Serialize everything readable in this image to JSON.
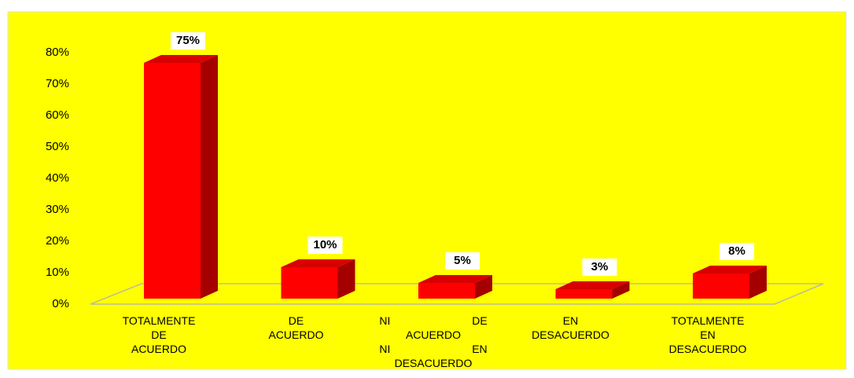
{
  "chart_data": {
    "type": "bar3d",
    "categories": [
      "TOTALMENTE DE ACUERDO",
      "DE ACUERDO",
      "NI DE ACUERDO NI EN DESACUERDO",
      "EN DESACUERDO",
      "TOTALMENTE EN DESACUERDO"
    ],
    "values": [
      75,
      10,
      5,
      3,
      8
    ],
    "value_labels": [
      "75%",
      "10%",
      "5%",
      "3%",
      "8%"
    ],
    "color": "#ff0000",
    "ylim": [
      0,
      80
    ],
    "yticks": [
      {
        "value": 0,
        "label": "0%"
      },
      {
        "value": 10,
        "label": "10%"
      },
      {
        "value": 20,
        "label": "20%"
      },
      {
        "value": 30,
        "label": "30%"
      },
      {
        "value": 40,
        "label": "40%"
      },
      {
        "value": 50,
        "label": "50%"
      },
      {
        "value": 60,
        "label": "60%"
      },
      {
        "value": 70,
        "label": "70%"
      },
      {
        "value": 80,
        "label": "80%"
      }
    ],
    "grid": false
  }
}
